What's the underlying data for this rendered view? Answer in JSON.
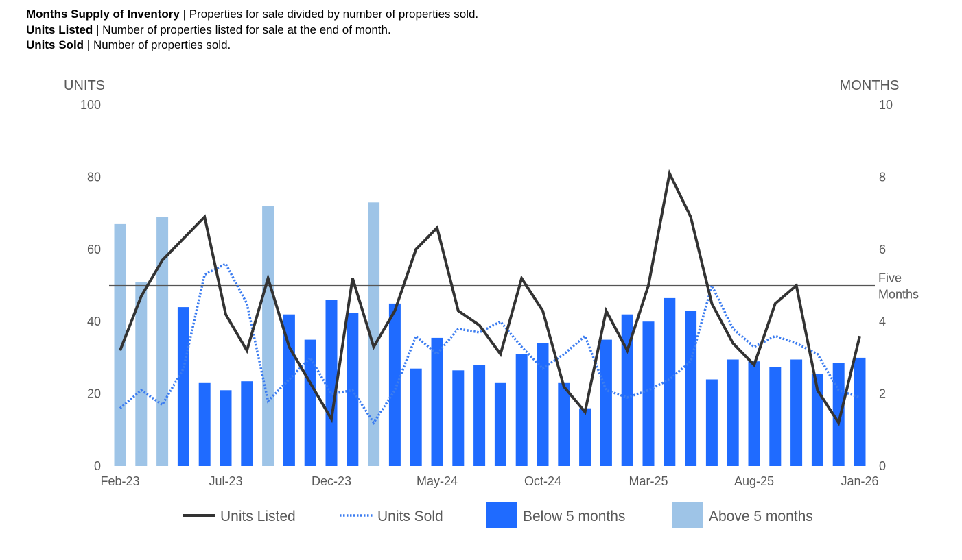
{
  "definitions": [
    {
      "term": "Months Supply of Inventory",
      "sep": " | ",
      "text": "Properties for sale divided by number of properties sold."
    },
    {
      "term": "Units Listed",
      "sep": " | ",
      "text": "Number of properties listed for sale at the end of month."
    },
    {
      "term": "Units Sold",
      "sep": " | ",
      "text": "Number of properties sold."
    }
  ],
  "chart_data": {
    "type": "bar",
    "left_axis_title": "UNITS",
    "right_axis_title": "MONTHS",
    "ylim_left": [
      0,
      100
    ],
    "ylim_right": [
      0,
      10
    ],
    "left_ticks": [
      "0",
      "20",
      "40",
      "60",
      "80",
      "100"
    ],
    "right_ticks": [
      "0",
      "2",
      "4",
      "6",
      "8",
      "10"
    ],
    "grid": false,
    "x_tick_labels": [
      "Feb-23",
      "Jul-23",
      "Dec-23",
      "May-24",
      "Oct-24",
      "Mar-25",
      "Aug-25",
      "Jan-26"
    ],
    "categories": [
      "Feb-23",
      "Mar-23",
      "Apr-23",
      "May-23",
      "Jun-23",
      "Jul-23",
      "Aug-23",
      "Sep-23",
      "Oct-23",
      "Nov-23",
      "Dec-23",
      "Jan-24",
      "Feb-24",
      "Mar-24",
      "Apr-24",
      "May-24",
      "Jun-24",
      "Jul-24",
      "Aug-24",
      "Sep-24",
      "Oct-24",
      "Nov-24",
      "Dec-24",
      "Jan-25",
      "Feb-25",
      "Mar-25",
      "Apr-25",
      "May-25",
      "Jun-25",
      "Jul-25",
      "Aug-25",
      "Sep-25",
      "Oct-25",
      "Nov-25",
      "Dec-25",
      "Jan-26"
    ],
    "months_supply": [
      6.7,
      5.1,
      6.9,
      4.4,
      2.3,
      2.1,
      2.35,
      7.2,
      4.2,
      3.5,
      4.6,
      4.25,
      7.3,
      4.5,
      2.7,
      3.55,
      2.65,
      2.8,
      2.3,
      3.1,
      3.4,
      2.3,
      1.6,
      3.5,
      4.2,
      4.0,
      4.65,
      4.3,
      2.4,
      2.95,
      2.9,
      2.75,
      2.95,
      2.55,
      2.85,
      3.0
    ],
    "series": [
      {
        "name": "Units Listed",
        "axis": "left",
        "values": [
          32,
          47,
          57,
          63,
          69,
          42,
          32,
          52,
          33,
          23,
          13,
          52,
          33,
          43,
          60,
          66,
          43,
          39,
          31,
          52,
          43,
          22,
          15,
          43,
          32,
          50,
          81,
          69,
          45,
          34,
          28,
          45,
          50,
          21,
          12,
          36
        ]
      },
      {
        "name": "Units Sold",
        "axis": "left",
        "values": [
          16,
          21,
          17,
          27,
          53,
          56,
          45,
          18,
          24,
          30,
          20,
          21,
          12,
          21,
          36,
          31,
          38,
          37,
          40,
          33,
          27,
          31,
          36,
          21,
          19,
          21,
          24,
          29,
          50,
          38,
          33,
          36,
          34,
          31,
          21,
          19
        ]
      }
    ],
    "reference_line": {
      "value": 5,
      "axis": "right",
      "label": [
        "Five",
        "Months"
      ]
    },
    "legend": {
      "position": "bottom",
      "items": [
        {
          "label": "Units Listed",
          "style": "line"
        },
        {
          "label": "Units Sold",
          "style": "dotted"
        },
        {
          "label": "Below 5 months",
          "style": "box",
          "color_key": "below"
        },
        {
          "label": "Above 5 months",
          "style": "box",
          "color_key": "above"
        }
      ]
    },
    "colors": {
      "below": "#1f6bff",
      "above": "#9ec4e7",
      "listed": "#333333",
      "sold": "#3b7cf0",
      "reference": "#555555",
      "axis_text": "#595959"
    }
  }
}
